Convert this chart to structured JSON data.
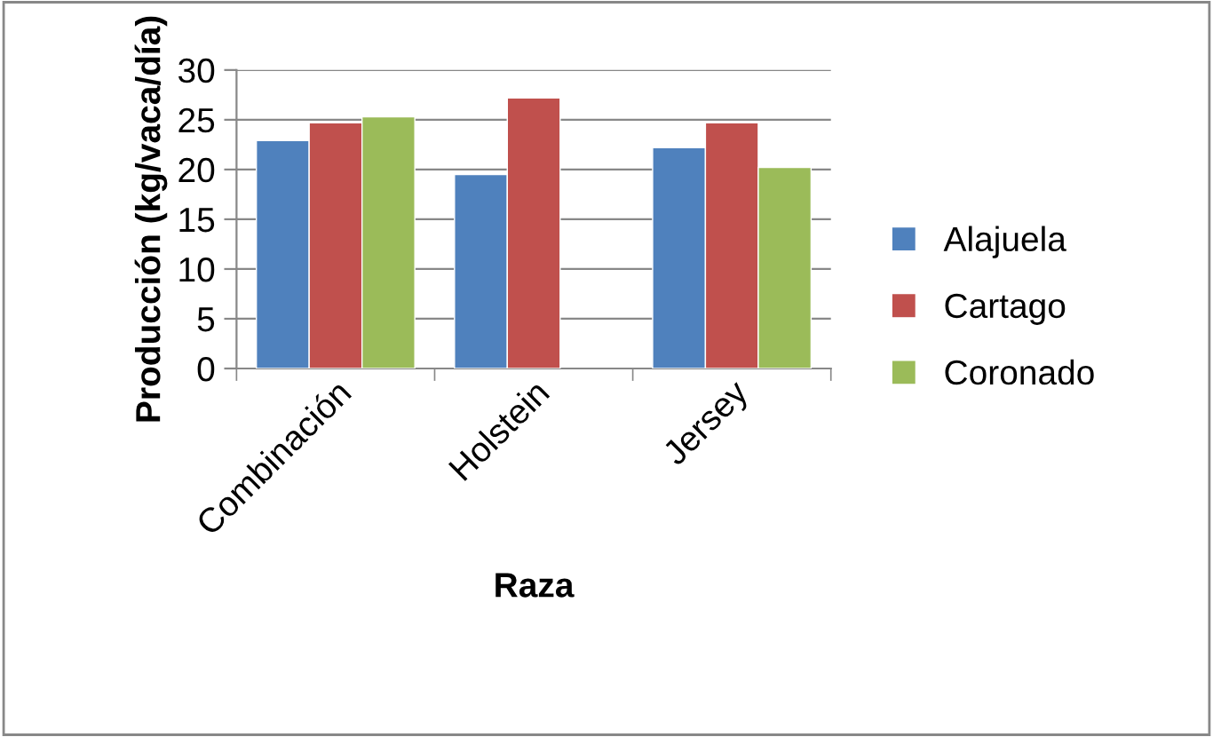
{
  "chart_data": {
    "type": "bar",
    "xlabel": "Raza",
    "ylabel": "Producción (kg/vaca/día)",
    "categories": [
      "Combinación",
      "Holstein",
      "Jersey"
    ],
    "series": [
      {
        "name": "Alajuela",
        "color": "#4f81bd",
        "values": [
          22.9,
          19.5,
          22.2
        ]
      },
      {
        "name": "Cartago",
        "color": "#c0504d",
        "values": [
          24.7,
          27.2,
          24.7
        ]
      },
      {
        "name": "Coronado",
        "color": "#9bbb59",
        "values": [
          25.3,
          null,
          20.2
        ]
      }
    ],
    "ylim": [
      0,
      30
    ],
    "yticks": [
      0,
      5,
      10,
      15,
      20,
      25,
      30
    ],
    "grid": "y",
    "legend": "right"
  }
}
